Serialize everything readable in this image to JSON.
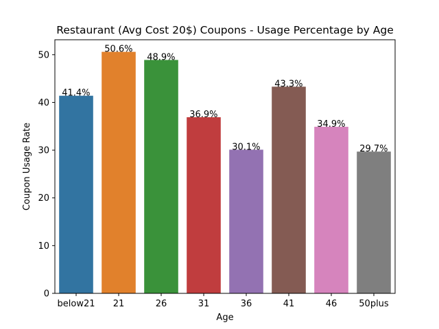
{
  "chart_data": {
    "type": "bar",
    "title": "Restaurant (Avg Cost 20$) Coupons - Usage Percentage by Age",
    "xlabel": "Age",
    "ylabel": "Coupon Usage Rate",
    "categories": [
      "below21",
      "21",
      "26",
      "31",
      "36",
      "41",
      "46",
      "50plus"
    ],
    "values": [
      41.4,
      50.6,
      48.9,
      36.9,
      30.1,
      43.3,
      34.9,
      29.7
    ],
    "data_labels": [
      "41.4%",
      "50.6%",
      "48.9%",
      "36.9%",
      "30.1%",
      "43.3%",
      "34.9%",
      "29.7%"
    ],
    "colors": [
      "#3274a1",
      "#e1812c",
      "#3a923a",
      "#c03d3e",
      "#9372b2",
      "#845b53",
      "#d684bd",
      "#7f7f7f"
    ],
    "yticks": [
      0,
      10,
      20,
      30,
      40,
      50
    ],
    "ylim": [
      0,
      53.13
    ],
    "grid": false,
    "legend": "none"
  }
}
